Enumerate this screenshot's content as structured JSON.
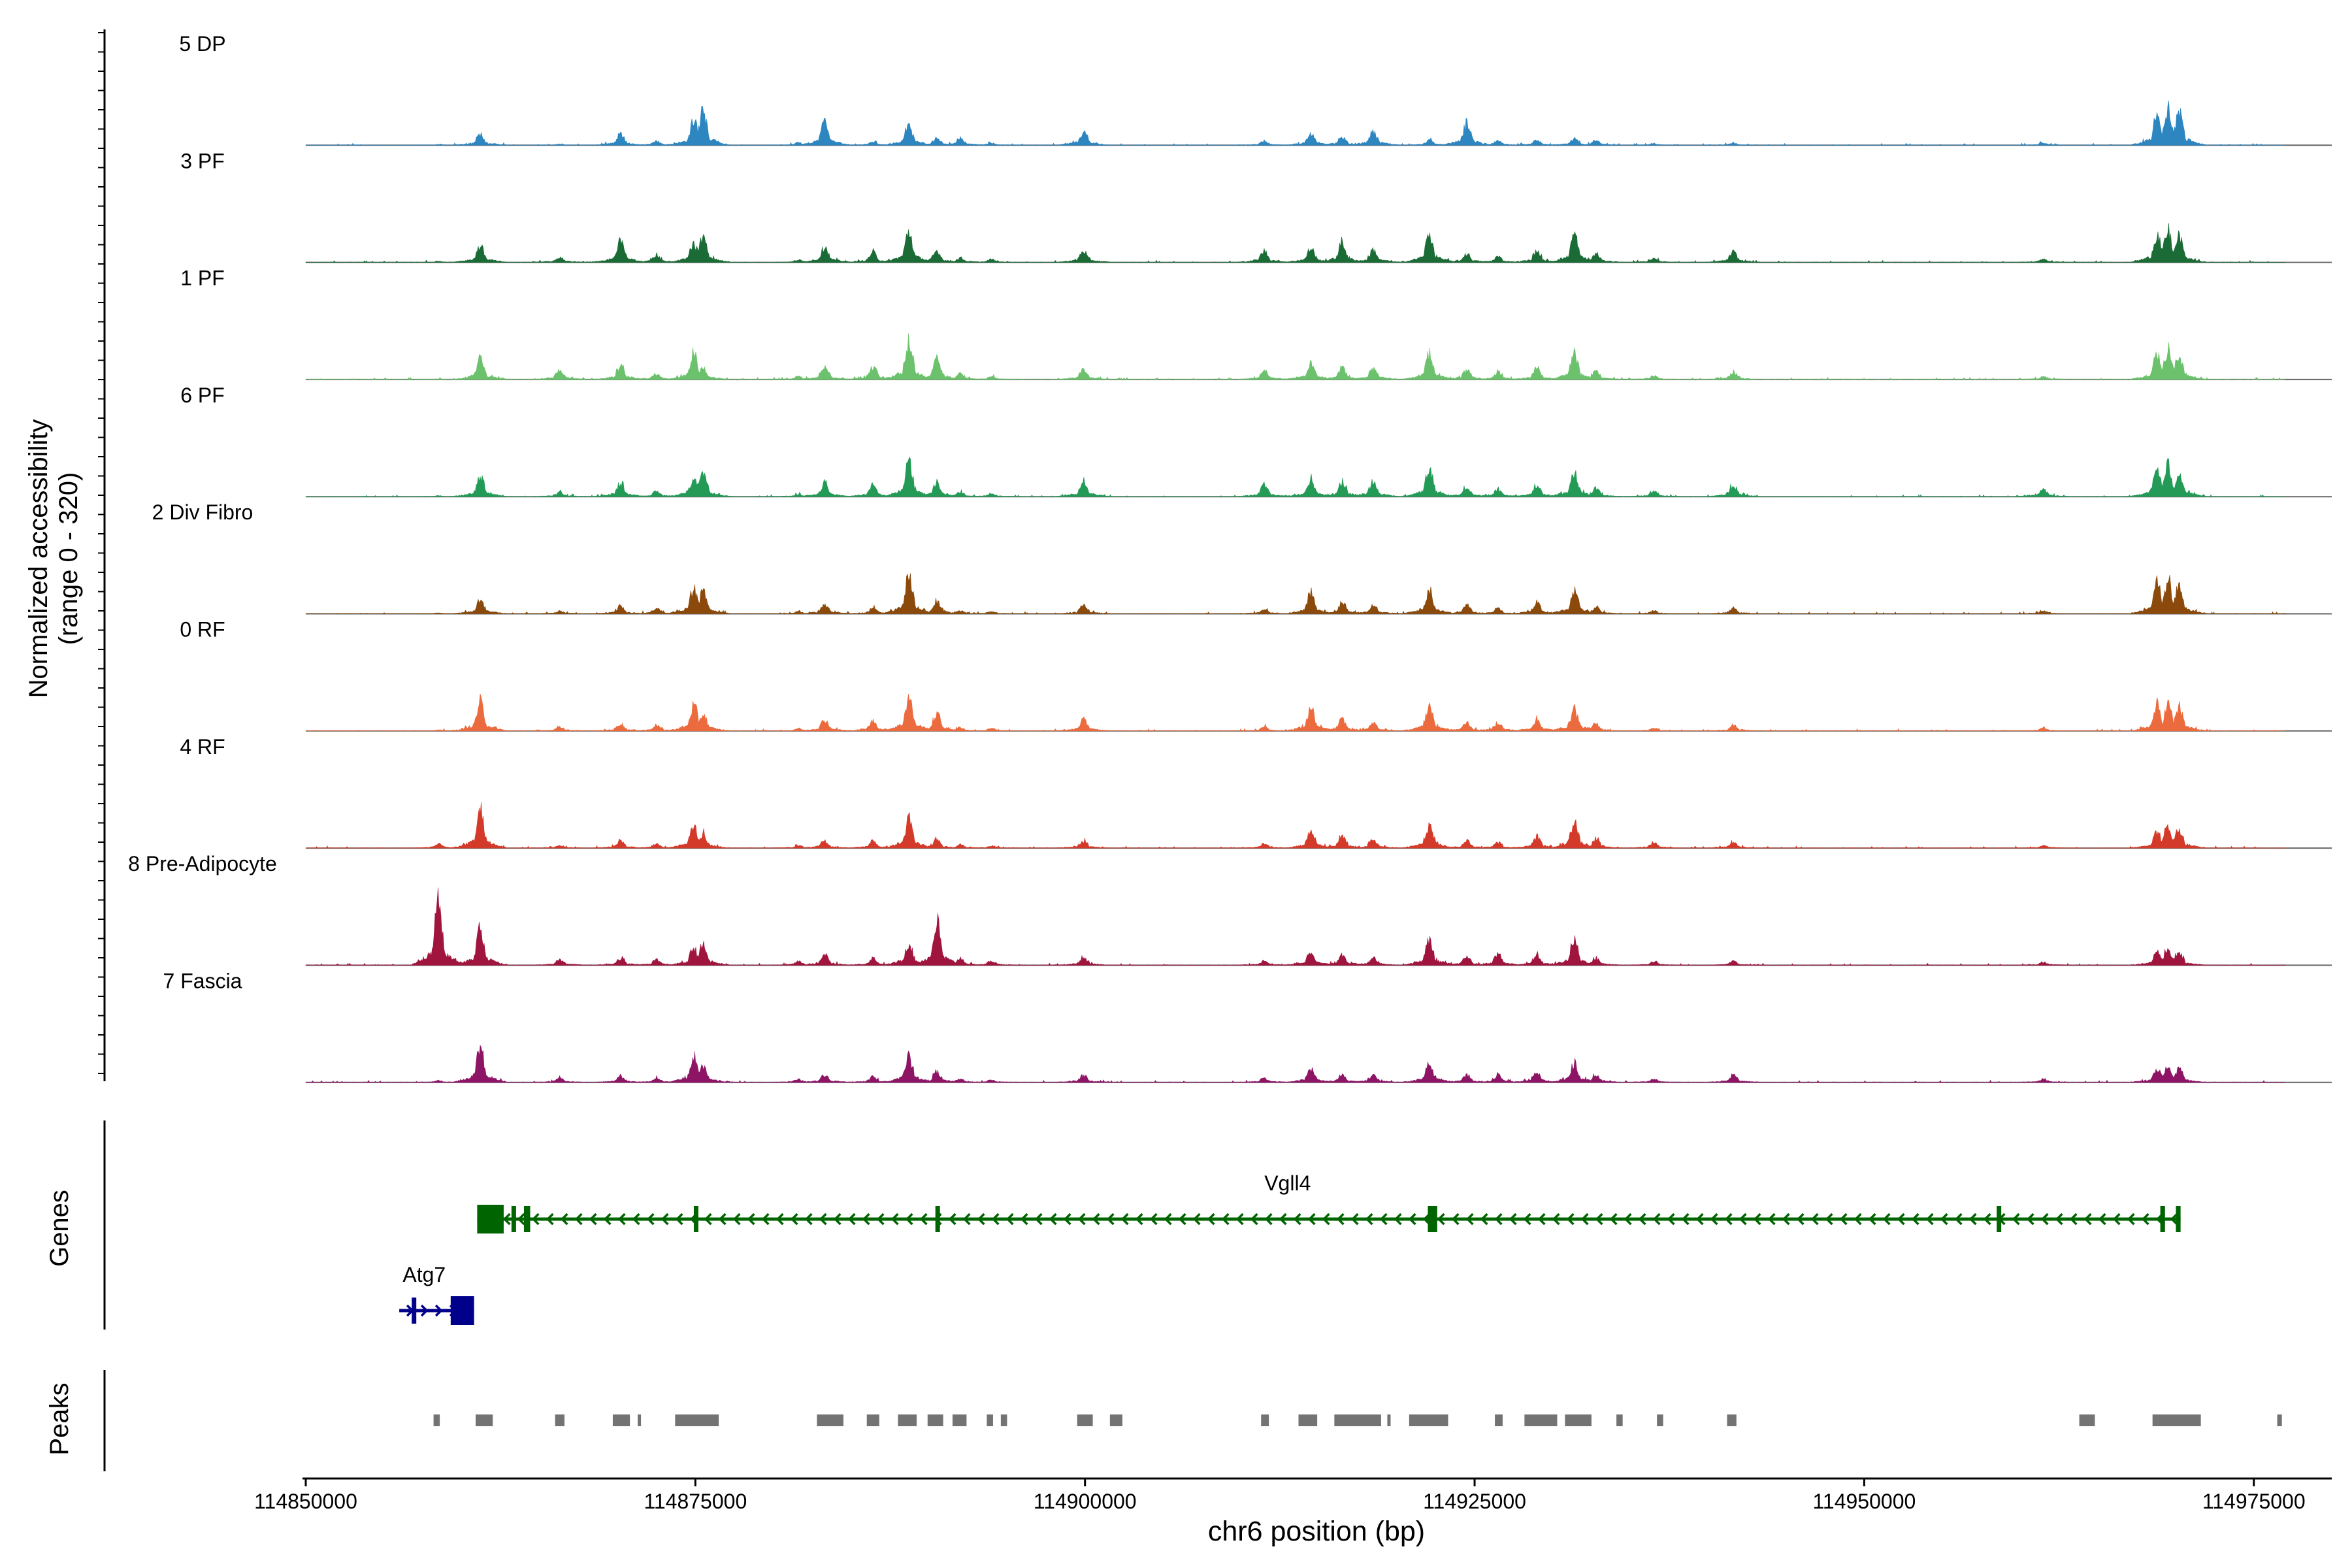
{
  "chart_data": {
    "type": "area",
    "title": "",
    "coverage": {
      "ylabel": "Normalized accessibility",
      "yrange_label": "(range 0 - 320)",
      "ylim": [
        0,
        320
      ],
      "peak_positions": [
        114858500,
        114861200,
        114866300,
        114870200,
        114872500,
        114874900,
        114875500,
        114881600,
        114883300,
        114886400,
        114888700,
        114890500,
        114892000,
        114894000,
        114899900,
        114911500,
        114914500,
        114916500,
        114918500,
        114922100,
        114924500,
        114926500,
        114929000,
        114931400,
        114932800,
        114936500,
        114941600,
        114961500,
        114968800,
        114969500,
        114970200
      ],
      "tracks": [
        {
          "name": "5 DP",
          "color": "#2E86C1",
          "heights": [
            2,
            38,
            4,
            40,
            15,
            90,
            120,
            8,
            85,
            12,
            70,
            20,
            25,
            8,
            48,
            15,
            40,
            30,
            50,
            18,
            80,
            15,
            20,
            25,
            18,
            6,
            7,
            9,
            110,
            130,
            120
          ]
        },
        {
          "name": "3 PF",
          "color": "#1A6B35",
          "heights": [
            3,
            60,
            20,
            80,
            25,
            70,
            90,
            8,
            55,
            35,
            110,
            40,
            15,
            10,
            40,
            40,
            50,
            70,
            45,
            100,
            30,
            20,
            40,
            100,
            30,
            15,
            35,
            12,
            100,
            110,
            90
          ]
        },
        {
          "name": "1 PF",
          "color": "#6CC26C",
          "heights": [
            2,
            70,
            35,
            50,
            20,
            90,
            40,
            10,
            40,
            45,
            140,
            70,
            20,
            10,
            35,
            30,
            60,
            40,
            40,
            90,
            35,
            25,
            40,
            95,
            30,
            12,
            25,
            10,
            95,
            110,
            85
          ]
        },
        {
          "name": "6 PF",
          "color": "#239B56",
          "heights": [
            3,
            70,
            15,
            50,
            20,
            70,
            80,
            8,
            50,
            40,
            120,
            50,
            15,
            12,
            60,
            40,
            60,
            55,
            55,
            100,
            35,
            25,
            40,
            90,
            30,
            20,
            40,
            25,
            100,
            110,
            85
          ]
        },
        {
          "name": "2 Div Fibro",
          "color": "#8B4A0B",
          "heights": [
            2,
            50,
            10,
            25,
            20,
            90,
            80,
            8,
            30,
            20,
            130,
            45,
            10,
            8,
            30,
            15,
            70,
            40,
            35,
            85,
            30,
            20,
            40,
            80,
            25,
            10,
            20,
            10,
            110,
            120,
            100
          ]
        },
        {
          "name": "0 RF",
          "color": "#EC6B3E",
          "heights": [
            3,
            100,
            15,
            25,
            20,
            90,
            60,
            8,
            40,
            35,
            120,
            60,
            12,
            8,
            40,
            15,
            80,
            40,
            30,
            90,
            30,
            30,
            40,
            80,
            25,
            10,
            20,
            10,
            90,
            95,
            85
          ]
        },
        {
          "name": "4 RF",
          "color": "#D43A2A",
          "heights": [
            15,
            130,
            10,
            25,
            15,
            80,
            50,
            10,
            25,
            25,
            100,
            30,
            12,
            8,
            25,
            15,
            60,
            40,
            30,
            80,
            25,
            20,
            40,
            100,
            30,
            20,
            20,
            10,
            60,
            80,
            70
          ]
        },
        {
          "name": "8 Pre-Adipocyte",
          "color": "#A0153E",
          "heights": [
            230,
            130,
            20,
            25,
            20,
            60,
            70,
            15,
            35,
            25,
            80,
            150,
            25,
            15,
            25,
            15,
            50,
            40,
            30,
            90,
            30,
            40,
            35,
            90,
            25,
            12,
            15,
            10,
            50,
            60,
            45
          ]
        },
        {
          "name": "7 Fascia",
          "color": "#8E1466",
          "heights": [
            6,
            130,
            15,
            20,
            15,
            95,
            60,
            10,
            25,
            20,
            90,
            40,
            12,
            8,
            25,
            15,
            45,
            30,
            25,
            65,
            25,
            25,
            35,
            70,
            25,
            10,
            25,
            12,
            50,
            55,
            45
          ]
        }
      ]
    },
    "genes": {
      "label": "Genes",
      "items": [
        {
          "name": "Vgll4",
          "start": 114861000,
          "end": 114970300,
          "strand": "-",
          "color": "#006400",
          "exons": [
            [
              114861000,
              114862700
            ],
            [
              114863200,
              114863400
            ],
            [
              114864000,
              114864400
            ],
            [
              114874900,
              114875100
            ],
            [
              114890400,
              114890600
            ],
            [
              114922000,
              114922600
            ],
            [
              114958500,
              114958600
            ],
            [
              114969000,
              114969300
            ],
            [
              114970000,
              114970300
            ]
          ]
        },
        {
          "name": "Atg7",
          "start": 114856000,
          "end": 114860800,
          "strand": "+",
          "color": "#00008B",
          "exons": [
            [
              114856800,
              114857000
            ],
            [
              114859300,
              114860800
            ]
          ]
        }
      ]
    },
    "peaks": {
      "label": "Peaks",
      "color": "#737373",
      "regions": [
        [
          114858200,
          114858600
        ],
        [
          114860900,
          114862000
        ],
        [
          114866000,
          114866600
        ],
        [
          114869700,
          114870800
        ],
        [
          114871300,
          114871500
        ],
        [
          114873700,
          114876500
        ],
        [
          114882800,
          114884500
        ],
        [
          114886000,
          114886800
        ],
        [
          114888000,
          114889200
        ],
        [
          114889900,
          114890900
        ],
        [
          114891500,
          114892400
        ],
        [
          114893700,
          114894100
        ],
        [
          114894600,
          114895000
        ],
        [
          114899500,
          114900500
        ],
        [
          114901600,
          114902400
        ],
        [
          114911300,
          114911800
        ],
        [
          114913700,
          114914900
        ],
        [
          114916000,
          114919000
        ],
        [
          114919400,
          114919500
        ],
        [
          114920800,
          114923300
        ],
        [
          114926300,
          114926800
        ],
        [
          114928200,
          114930300
        ],
        [
          114930800,
          114932500
        ],
        [
          114934100,
          114934500
        ],
        [
          114936700,
          114937100
        ],
        [
          114941200,
          114941800
        ],
        [
          114963800,
          114964800
        ],
        [
          114968500,
          114971600
        ],
        [
          114976500,
          114976800
        ]
      ]
    },
    "xaxis": {
      "label": "chr6 position (bp)",
      "xlim": [
        114850000,
        114980000
      ],
      "ticks": [
        114850000,
        114875000,
        114900000,
        114925000,
        114950000,
        114975000
      ],
      "tick_labels": [
        "114850000",
        "114875000",
        "114900000",
        "114925000",
        "114950000",
        "114975000"
      ]
    }
  }
}
